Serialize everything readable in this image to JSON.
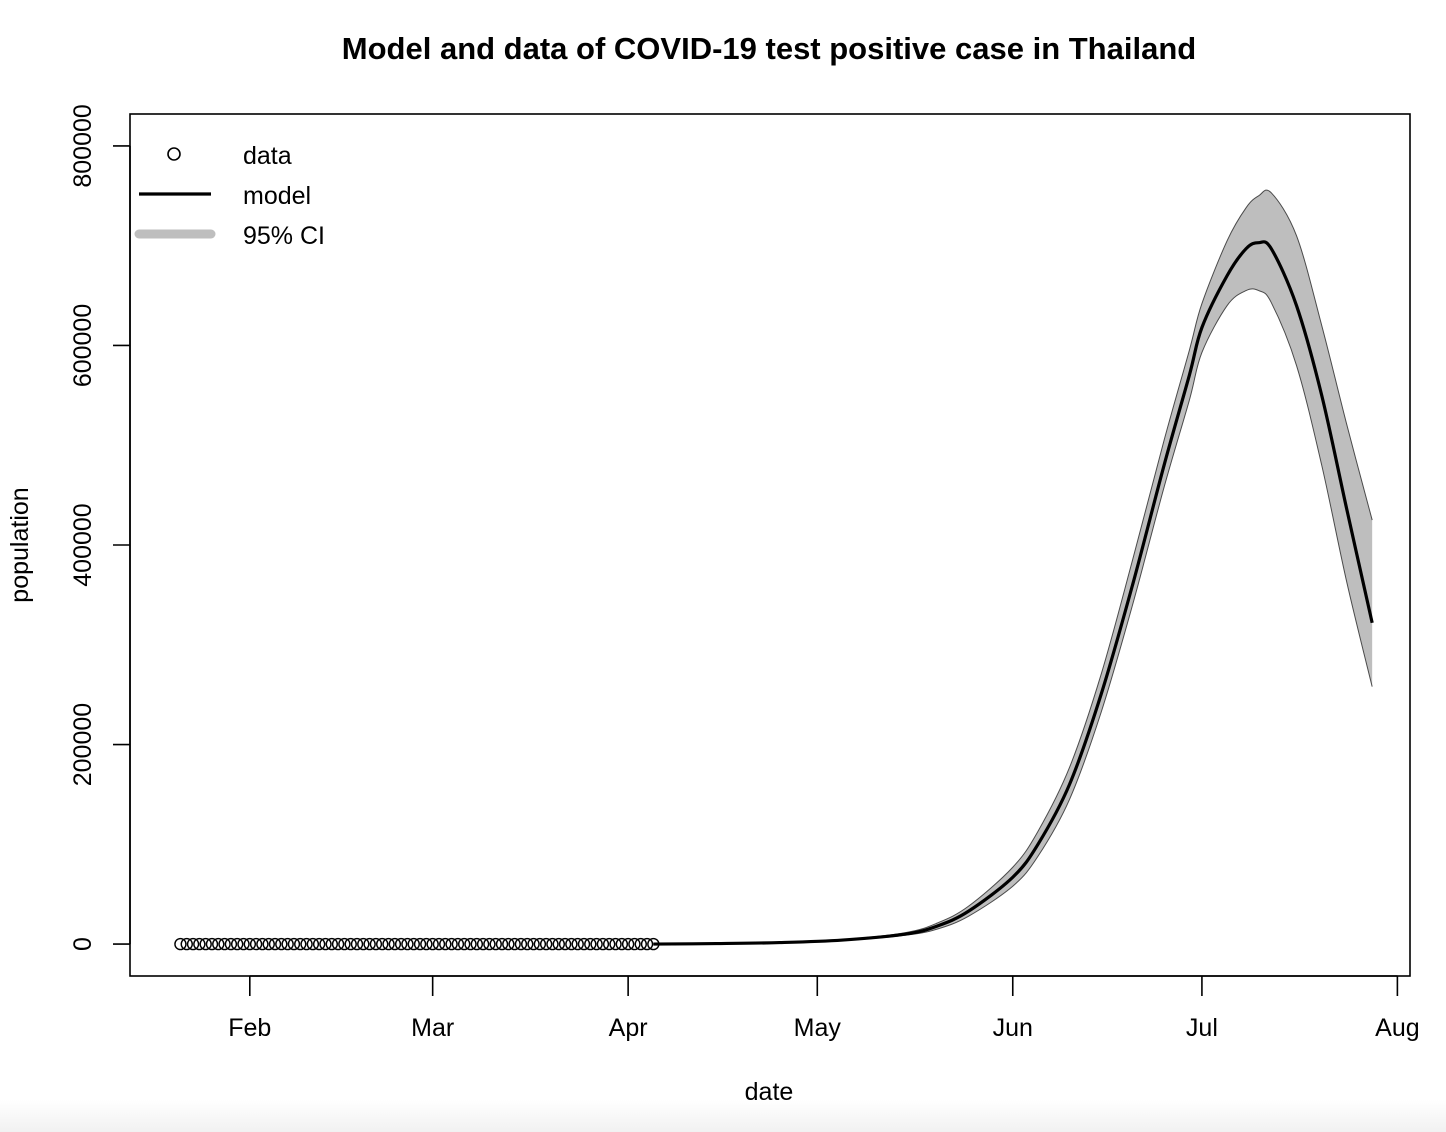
{
  "colors": {
    "ci_fill": "#bebebe",
    "ci_edge": "#4a4a4a",
    "model_line": "#000000",
    "data_point": "#000000",
    "axes": "#000000"
  },
  "chart_data": {
    "type": "line",
    "title": "Model and data of COVID-19 test positive case in Thailand",
    "xlabel": "date",
    "ylabel": "population",
    "xlim": [
      "2020-01-13",
      "2020-08-03"
    ],
    "ylim": [
      -32000,
      832000
    ],
    "x_ticks": [
      {
        "date": "2020-02-01",
        "label": "Feb"
      },
      {
        "date": "2020-03-01",
        "label": "Mar"
      },
      {
        "date": "2020-04-01",
        "label": "Apr"
      },
      {
        "date": "2020-05-01",
        "label": "May"
      },
      {
        "date": "2020-06-01",
        "label": "Jun"
      },
      {
        "date": "2020-07-01",
        "label": "Jul"
      },
      {
        "date": "2020-08-01",
        "label": "Aug"
      }
    ],
    "y_ticks": [
      {
        "value": 0,
        "label": "0"
      },
      {
        "value": 200000,
        "label": "200000"
      },
      {
        "value": 400000,
        "label": "400000"
      },
      {
        "value": 600000,
        "label": "600000"
      },
      {
        "value": 800000,
        "label": "800000"
      }
    ],
    "legend": {
      "position": "top-left",
      "entries": [
        {
          "label": "data",
          "kind": "point"
        },
        {
          "label": "model",
          "kind": "line"
        },
        {
          "label": "95% CI",
          "kind": "band"
        }
      ]
    },
    "data_series": {
      "name": "data",
      "start_date": "2020-01-21",
      "end_date": "2020-04-05",
      "value": 0
    },
    "model_series": {
      "name": "model",
      "x": [
        "2020-04-05",
        "2020-04-15",
        "2020-04-25",
        "2020-05-05",
        "2020-05-15",
        "2020-05-20",
        "2020-05-25",
        "2020-06-01",
        "2020-06-05",
        "2020-06-10",
        "2020-06-15",
        "2020-06-20",
        "2020-06-25",
        "2020-06-29",
        "2020-07-01",
        "2020-07-05",
        "2020-07-08",
        "2020-07-10",
        "2020-07-12",
        "2020-07-16",
        "2020-07-20",
        "2020-07-24",
        "2020-07-28"
      ],
      "y": [
        0,
        500,
        1500,
        4000,
        10000,
        18000,
        33000,
        67000,
        100000,
        160000,
        250000,
        360000,
        480000,
        570000,
        618000,
        670000,
        697000,
        703000,
        697000,
        640000,
        550000,
        435000,
        322000
      ]
    },
    "ci_series": {
      "name": "95% CI",
      "x": [
        "2020-04-05",
        "2020-04-15",
        "2020-04-25",
        "2020-05-05",
        "2020-05-15",
        "2020-05-20",
        "2020-05-25",
        "2020-06-01",
        "2020-06-05",
        "2020-06-10",
        "2020-06-15",
        "2020-06-20",
        "2020-06-25",
        "2020-06-29",
        "2020-07-01",
        "2020-07-05",
        "2020-07-08",
        "2020-07-10",
        "2020-07-12",
        "2020-07-16",
        "2020-07-20",
        "2020-07-24",
        "2020-07-28"
      ],
      "upper": [
        0,
        600,
        1700,
        4500,
        11500,
        21000,
        38000,
        77000,
        113000,
        177000,
        270000,
        385000,
        505000,
        595000,
        642000,
        705000,
        738000,
        750000,
        753000,
        710000,
        620000,
        520000,
        425000
      ],
      "lower": [
        0,
        400,
        1300,
        3600,
        8800,
        15000,
        28000,
        58000,
        88000,
        145000,
        232000,
        340000,
        458000,
        545000,
        593000,
        640000,
        655000,
        655000,
        643000,
        580000,
        480000,
        362000,
        258000
      ]
    }
  }
}
